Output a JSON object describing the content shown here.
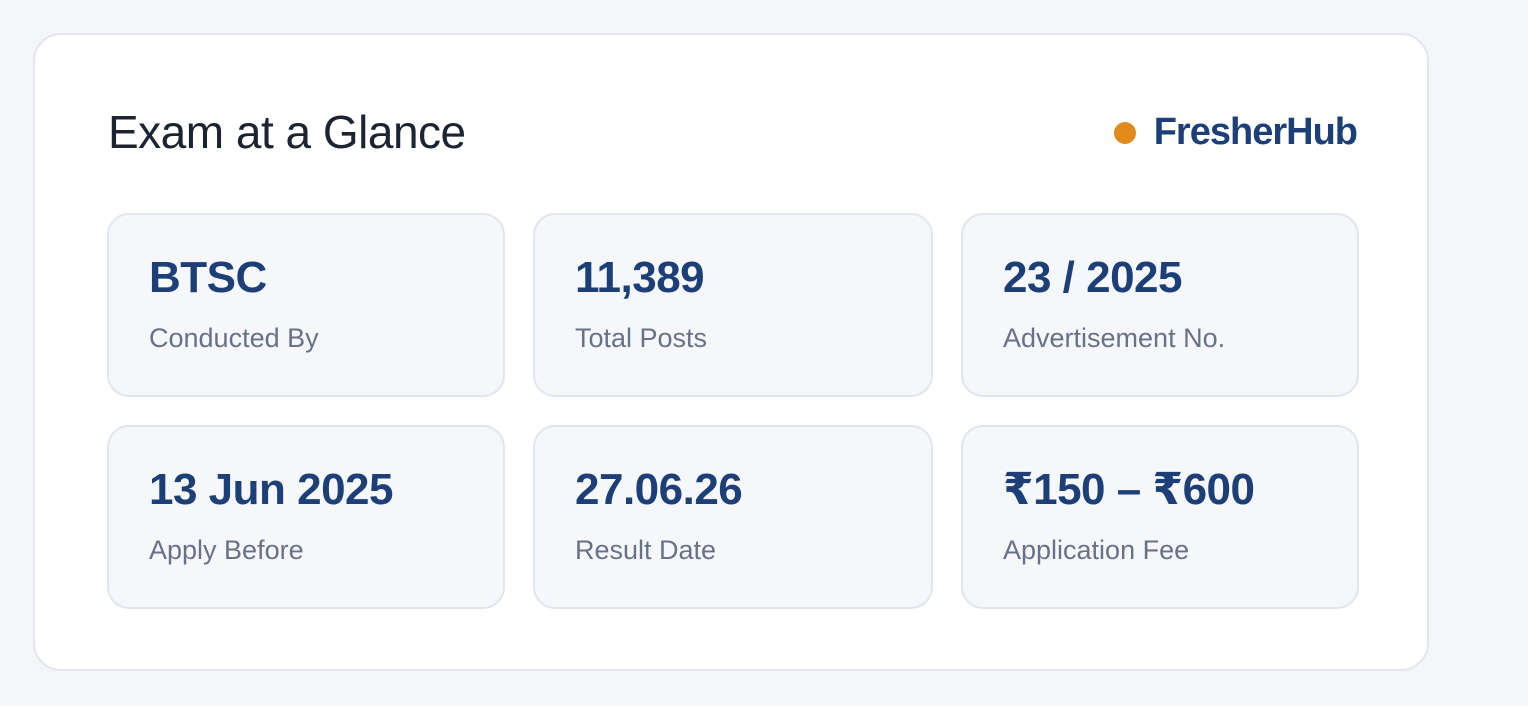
{
  "header": {
    "title": "Exam at a Glance",
    "brand": "FresherHub"
  },
  "stats": [
    {
      "value": "BTSC",
      "label": "Conducted By"
    },
    {
      "value": "11,389",
      "label": "Total Posts"
    },
    {
      "value": "23 / 2025",
      "label": "Advertisement No."
    },
    {
      "value": "13 Jun 2025",
      "label": "Apply Before"
    },
    {
      "value": "27.06.26",
      "label": "Result Date"
    },
    {
      "value": "₹150 – ₹600",
      "label": "Application Fee"
    }
  ]
}
